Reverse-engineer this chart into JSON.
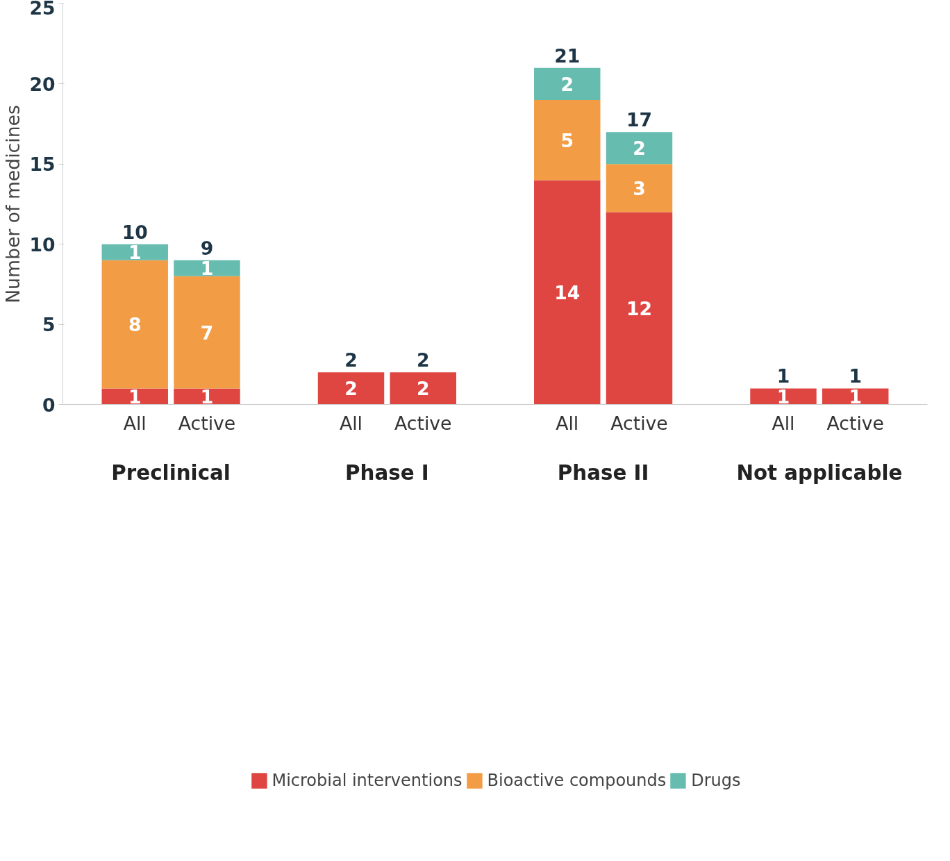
{
  "chart_data": {
    "type": "bar",
    "stacked": true,
    "ylabel": "Number of medicines",
    "categories": [
      "All",
      "Active",
      "All",
      "Active",
      "All",
      "Active",
      "All",
      "Active"
    ],
    "series": [
      {
        "name": "Microbial interventions",
        "color": "#df4541",
        "values": [
          1,
          1,
          2,
          2,
          14,
          12,
          1,
          1
        ]
      },
      {
        "name": "Bioactive compounds",
        "color": "#f29d46",
        "values": [
          8,
          7,
          null,
          null,
          5,
          3,
          null,
          null
        ]
      },
      {
        "name": "Drugs",
        "color": "#67bcb0",
        "values": [
          1,
          1,
          null,
          null,
          2,
          2,
          null,
          null
        ]
      }
    ],
    "totals": [
      "10",
      "9",
      "2",
      "2",
      "21",
      "17",
      "1",
      "1"
    ],
    "annotations": [
      "Preclinical",
      "Phase I",
      "Phase II",
      "Not applicable"
    ],
    "data_labels": true,
    "ylim": [
      0,
      25
    ],
    "yticks": [
      0,
      5,
      10,
      15,
      20,
      25
    ],
    "grid": false,
    "legend": "bottom"
  }
}
